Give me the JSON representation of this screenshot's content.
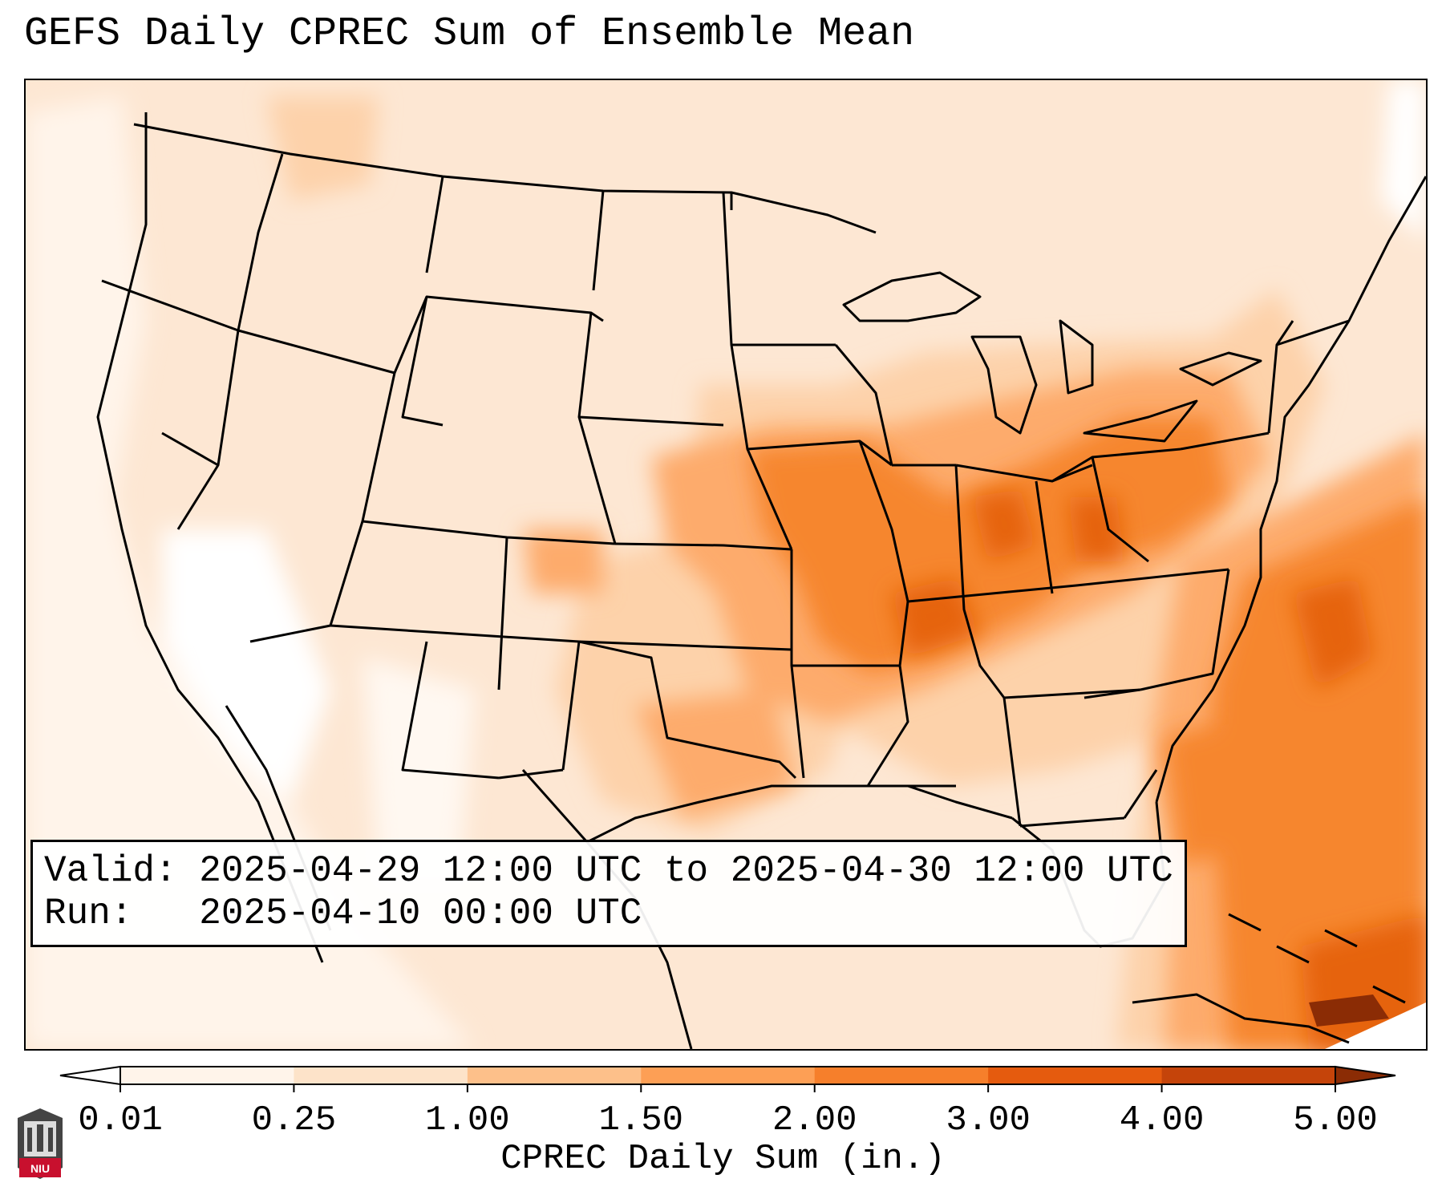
{
  "title": "GEFS Daily CPREC Sum of Ensemble Mean",
  "info": {
    "valid_label": "Valid:",
    "valid_value": "2025-04-29 12:00 UTC to 2025-04-30 12:00 UTC",
    "run_label": "Run:",
    "run_value": "2025-04-10 00:00 UTC"
  },
  "colorbar": {
    "label": "CPREC Daily Sum (in.)",
    "ticks": [
      "0.01",
      "0.25",
      "1.00",
      "1.50",
      "2.00",
      "3.00",
      "4.00",
      "5.00"
    ],
    "under_color": "#ffffff",
    "over_color": "#8b2c05",
    "bin_colors": [
      "#fff4ea",
      "#fde3c9",
      "#fdc08a",
      "#fd9f55",
      "#f67f2b",
      "#e55b0e",
      "#c5440a"
    ]
  },
  "logo": {
    "text": "NIU"
  },
  "map": {
    "region": "Continental United States",
    "colors": {
      "ocean_faint": "#fff4ea",
      "light": "#fde7d3",
      "light_medium": "#fdd2aa",
      "medium": "#fdab6c",
      "strong": "#f6862f",
      "deep": "#e6630f",
      "border": "#000000"
    }
  }
}
